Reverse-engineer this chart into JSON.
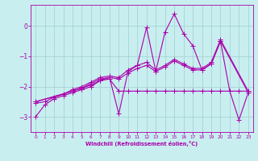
{
  "xlabel": "Windchill (Refroidissement éolien,°C)",
  "bg_color": "#c8eef0",
  "line_color": "#aa00aa",
  "marker": "+",
  "markersize": 4,
  "linewidth": 0.8,
  "xlim": [
    -0.5,
    23.5
  ],
  "ylim": [
    -3.5,
    0.7
  ],
  "xticks": [
    0,
    1,
    2,
    3,
    4,
    5,
    6,
    7,
    8,
    9,
    10,
    11,
    12,
    13,
    14,
    15,
    16,
    17,
    18,
    19,
    20,
    21,
    22,
    23
  ],
  "yticks": [
    0,
    -1,
    -2,
    -3
  ],
  "grid_color": "#a0cece",
  "series1": [
    [
      0,
      -3.0
    ],
    [
      1,
      -2.6
    ],
    [
      2,
      -2.4
    ],
    [
      3,
      -2.3
    ],
    [
      4,
      -2.2
    ],
    [
      5,
      -2.1
    ],
    [
      6,
      -2.0
    ],
    [
      7,
      -1.8
    ],
    [
      8,
      -1.7
    ],
    [
      9,
      -2.9
    ],
    [
      10,
      -1.5
    ],
    [
      11,
      -1.3
    ],
    [
      12,
      -0.05
    ],
    [
      13,
      -1.5
    ],
    [
      14,
      -0.2
    ],
    [
      15,
      0.4
    ],
    [
      16,
      -0.25
    ],
    [
      17,
      -0.65
    ],
    [
      18,
      -1.45
    ],
    [
      19,
      -1.25
    ],
    [
      20,
      -0.5
    ],
    [
      21,
      -2.15
    ],
    [
      22,
      -3.1
    ],
    [
      23,
      -2.2
    ]
  ],
  "series2": [
    [
      0,
      -2.55
    ],
    [
      1,
      -2.5
    ],
    [
      2,
      -2.35
    ],
    [
      3,
      -2.25
    ],
    [
      4,
      -2.15
    ],
    [
      5,
      -2.05
    ],
    [
      6,
      -1.95
    ],
    [
      7,
      -1.8
    ],
    [
      8,
      -1.75
    ],
    [
      9,
      -2.15
    ],
    [
      10,
      -2.15
    ],
    [
      11,
      -2.15
    ],
    [
      12,
      -2.15
    ],
    [
      13,
      -2.15
    ],
    [
      14,
      -2.15
    ],
    [
      15,
      -2.15
    ],
    [
      16,
      -2.15
    ],
    [
      17,
      -2.15
    ],
    [
      18,
      -2.15
    ],
    [
      19,
      -2.15
    ],
    [
      20,
      -2.15
    ],
    [
      21,
      -2.15
    ],
    [
      22,
      -2.15
    ],
    [
      23,
      -2.15
    ]
  ],
  "series3": [
    [
      0,
      -2.5
    ],
    [
      4,
      -2.15
    ],
    [
      5,
      -2.05
    ],
    [
      6,
      -1.9
    ],
    [
      7,
      -1.75
    ],
    [
      8,
      -1.7
    ],
    [
      9,
      -1.75
    ],
    [
      10,
      -1.55
    ],
    [
      11,
      -1.4
    ],
    [
      12,
      -1.3
    ],
    [
      13,
      -1.5
    ],
    [
      14,
      -1.35
    ],
    [
      15,
      -1.15
    ],
    [
      16,
      -1.3
    ],
    [
      17,
      -1.45
    ],
    [
      18,
      -1.45
    ],
    [
      19,
      -1.25
    ],
    [
      20,
      -0.5
    ],
    [
      23,
      -2.2
    ]
  ],
  "series4": [
    [
      0,
      -2.5
    ],
    [
      3,
      -2.25
    ],
    [
      4,
      -2.1
    ],
    [
      5,
      -2.0
    ],
    [
      6,
      -1.85
    ],
    [
      7,
      -1.7
    ],
    [
      8,
      -1.65
    ],
    [
      9,
      -1.7
    ],
    [
      10,
      -1.45
    ],
    [
      11,
      -1.3
    ],
    [
      12,
      -1.2
    ],
    [
      13,
      -1.45
    ],
    [
      14,
      -1.3
    ],
    [
      15,
      -1.1
    ],
    [
      16,
      -1.25
    ],
    [
      17,
      -1.4
    ],
    [
      18,
      -1.4
    ],
    [
      19,
      -1.2
    ],
    [
      20,
      -0.45
    ],
    [
      23,
      -2.15
    ]
  ]
}
